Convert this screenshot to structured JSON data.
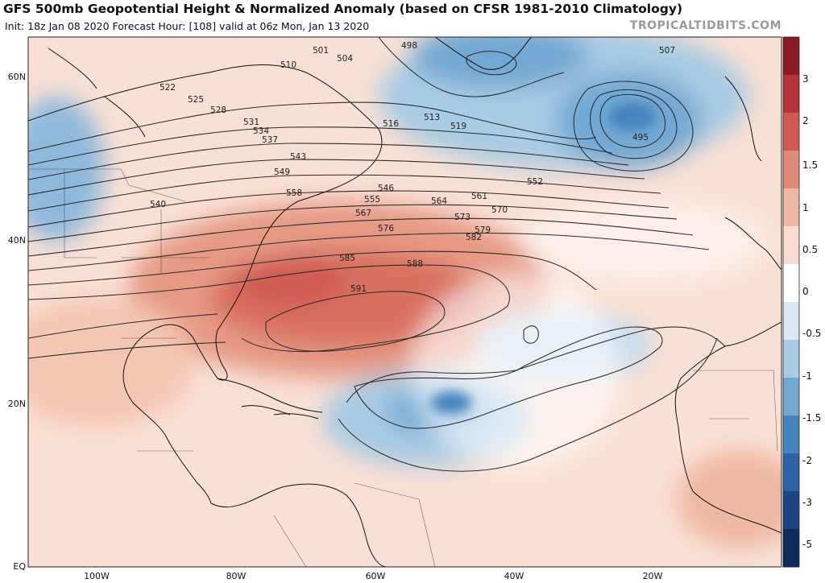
{
  "header": {
    "title": "GFS 500mb Geopotential Height & Normalized Anomaly (based on CFSR 1981-2010 Climatology)",
    "subtitle": "Init: 18z Jan 08 2020   Forecast Hour: [108]   valid at 06z Mon, Jan 13 2020",
    "brand": "TROPICALTIDBITS.COM"
  },
  "axes": {
    "lat_labels": [
      "60N",
      "40N",
      "20N",
      "EQ"
    ],
    "lon_labels": [
      "100W",
      "80W",
      "60W",
      "40W",
      "20W"
    ]
  },
  "colorbar": {
    "labels": [
      "3",
      "2",
      "1.5",
      "1",
      "0.5",
      "0",
      "-0.5",
      "-1",
      "-1.5",
      "-2",
      "-3",
      "-5"
    ],
    "colors": [
      "#8b1a24",
      "#b5333a",
      "#cf5a52",
      "#e08a78",
      "#efb7a4",
      "#f9ddd2",
      "#ffffff",
      "#d9e8f2",
      "#a9cbe3",
      "#72a8d3",
      "#4684bf",
      "#2e62a6",
      "#1c4484",
      "#0f2a5c"
    ]
  },
  "contour_labels": [
    "498",
    "501",
    "504",
    "507",
    "510",
    "513",
    "516",
    "519",
    "522",
    "525",
    "528",
    "531",
    "534",
    "537",
    "540",
    "543",
    "546",
    "549",
    "552",
    "555",
    "558",
    "561",
    "564",
    "567",
    "570",
    "573",
    "576",
    "579",
    "582",
    "585",
    "588",
    "591",
    "495"
  ],
  "map_labels": {
    "l498": "498",
    "l501": "501",
    "l504": "504",
    "l507": "507",
    "l510": "510",
    "l513": "513",
    "l516": "516",
    "l519": "519",
    "l522": "522",
    "l525": "525",
    "l528": "528",
    "l531": "531",
    "l534": "534",
    "l537": "537",
    "l540": "540",
    "l543": "543",
    "l546": "546",
    "l549": "549",
    "l552": "552",
    "l555": "555",
    "l558": "558",
    "l561": "561",
    "l564": "564",
    "l567": "567",
    "l570": "570",
    "l573": "573",
    "l576": "576",
    "l579": "579",
    "l582": "582",
    "l585": "585",
    "l588": "588",
    "l591": "591",
    "l495": "495"
  }
}
